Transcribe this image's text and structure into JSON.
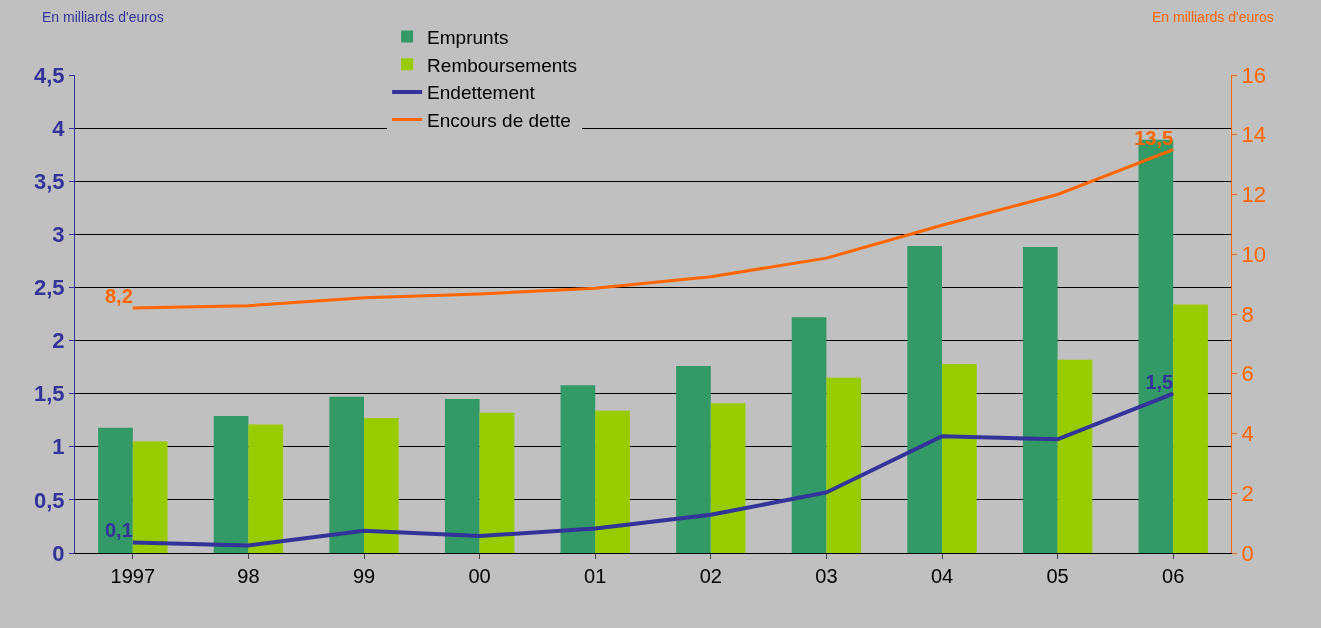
{
  "chart_data": {
    "type": "bar",
    "ylabel": "En milliards d'euros",
    "y2label": "En milliards d'euros",
    "categories": [
      "1997",
      "98",
      "99",
      "00",
      "01",
      "02",
      "03",
      "04",
      "05",
      "06"
    ],
    "series": [
      {
        "name": "Emprunts",
        "color": "#339966",
        "values": [
          1.18,
          1.29,
          1.47,
          1.45,
          1.58,
          1.76,
          2.22,
          2.89,
          2.88,
          3.89
        ]
      },
      {
        "name": "Remboursements",
        "color": "#99cc00",
        "values": [
          1.05,
          1.21,
          1.27,
          1.32,
          1.34,
          1.41,
          1.65,
          1.78,
          1.82,
          2.34
        ]
      },
      {
        "name": "Endettement",
        "type": "line",
        "color": "#333399",
        "values": [
          0.1,
          0.07,
          0.21,
          0.16,
          0.23,
          0.36,
          0.57,
          1.1,
          1.07,
          1.5
        ],
        "value_labels": [
          "0,1",
          null,
          null,
          null,
          null,
          null,
          null,
          null,
          null,
          "1,5"
        ]
      },
      {
        "name": "Encours de dette",
        "type": "line",
        "axis": "y2",
        "color": "#ff6600",
        "values": [
          8.2,
          8.28,
          8.54,
          8.67,
          8.86,
          9.25,
          9.87,
          10.97,
          12.0,
          13.5
        ],
        "value_labels": [
          "8,2",
          null,
          null,
          null,
          null,
          null,
          null,
          null,
          null,
          "13,5"
        ]
      }
    ],
    "ylim": [
      0,
      4.5
    ],
    "yticks": [
      0,
      {
        "value": 0.5,
        "label": "0,5"
      },
      1,
      {
        "value": 1.5,
        "label": "1,5"
      },
      2,
      {
        "value": 2.5,
        "label": "2,5"
      },
      3,
      {
        "value": 3.5,
        "label": "3,5"
      },
      4,
      {
        "value": 4.5,
        "label": "4,5"
      }
    ],
    "y2lim": [
      0,
      16
    ],
    "y2ticks": [
      0,
      2,
      4,
      6,
      8,
      10,
      12,
      14,
      16
    ],
    "grid": "y",
    "legend": "top",
    "marker": "none",
    "line_style": "solid"
  }
}
